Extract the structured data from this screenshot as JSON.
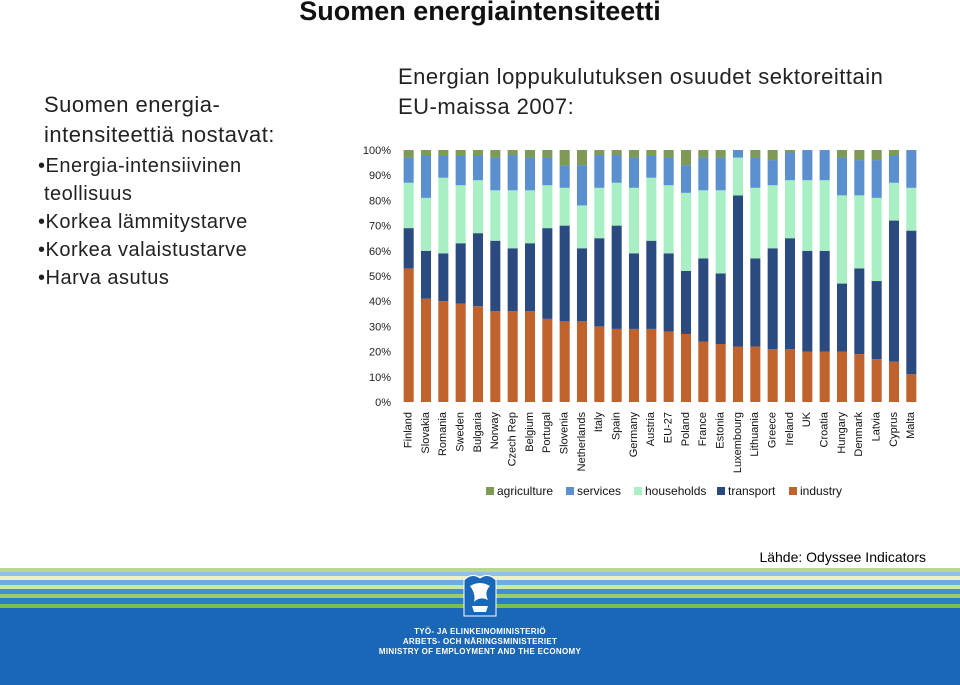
{
  "slide": {
    "title": "Suomen energiaintensiteetti",
    "left_heading": "Suomen energia-intensiteettiä nostavat:",
    "bullets": [
      "Energia-intensiivinen teollisuus",
      "Korkea lämmitystarve",
      "Korkea valaistustarve",
      "Harva asutus"
    ],
    "source": "Lähde: Odyssee Indicators"
  },
  "footer": {
    "ministry_fi": "TYÖ- JA ELINKEINOMINISTERIÖ",
    "ministry_sv": "ARBETS- OCH NÄRINGSMINISTERIET",
    "ministry_en": "MINISTRY OF EMPLOYMENT AND THE ECONOMY"
  },
  "colors": {
    "industry": "#c0622e",
    "transport": "#2b4a80",
    "households": "#a8f0c3",
    "services": "#5b8fd0",
    "agriculture": "#7f9a56"
  },
  "chart_data": {
    "type": "bar",
    "stacked": true,
    "title": "Energian loppukulutuksen osuudet sektoreittain EU-maissa 2007:",
    "ylim": [
      0,
      100
    ],
    "yticks": [
      "0%",
      "10%",
      "20%",
      "30%",
      "40%",
      "50%",
      "60%",
      "70%",
      "80%",
      "90%",
      "100%"
    ],
    "categories": [
      "Finland",
      "Slovakia",
      "Romania",
      "Sweden",
      "Bulgaria",
      "Norway",
      "Czech Rep",
      "Belgium",
      "Portugal",
      "Slovenia",
      "Netherlands",
      "Italy",
      "Spain",
      "Germany",
      "Austria",
      "EU-27",
      "Poland",
      "France",
      "Estonia",
      "Luxembourg",
      "Lithuania",
      "Greece",
      "Ireland",
      "UK",
      "Croatia",
      "Hungary",
      "Denmark",
      "Latvia",
      "Cyprus",
      "Malta"
    ],
    "legend_position": "bottom",
    "series": [
      {
        "name": "industry",
        "values": [
          53,
          41,
          40,
          39,
          38,
          36,
          36,
          36,
          33,
          32,
          32,
          30,
          29,
          29,
          29,
          28,
          27,
          24,
          23,
          22,
          22,
          21,
          21,
          20,
          20,
          20,
          19,
          17,
          16,
          11
        ]
      },
      {
        "name": "transport",
        "values": [
          16,
          19,
          19,
          24,
          29,
          28,
          25,
          27,
          36,
          38,
          29,
          35,
          41,
          30,
          35,
          31,
          25,
          33,
          28,
          60,
          35,
          40,
          44,
          40,
          40,
          27,
          34,
          31,
          56,
          57
        ]
      },
      {
        "name": "households",
        "values": [
          18,
          21,
          30,
          23,
          21,
          20,
          23,
          21,
          17,
          15,
          17,
          20,
          17,
          26,
          25,
          27,
          31,
          27,
          33,
          15,
          28,
          25,
          23,
          28,
          28,
          35,
          29,
          33,
          15,
          17
        ]
      },
      {
        "name": "services",
        "values": [
          10,
          17,
          9,
          12,
          10,
          13,
          14,
          13,
          11,
          9,
          16,
          13,
          11,
          12,
          9,
          11,
          11,
          13,
          13,
          3,
          12,
          10,
          11,
          12,
          12,
          15,
          14,
          15,
          11,
          15
        ]
      },
      {
        "name": "agriculture",
        "values": [
          3,
          2,
          2,
          2,
          2,
          3,
          2,
          3,
          3,
          6,
          6,
          2,
          2,
          3,
          2,
          3,
          6,
          3,
          3,
          0,
          3,
          4,
          1,
          0,
          0,
          3,
          4,
          4,
          2,
          0
        ]
      }
    ]
  }
}
